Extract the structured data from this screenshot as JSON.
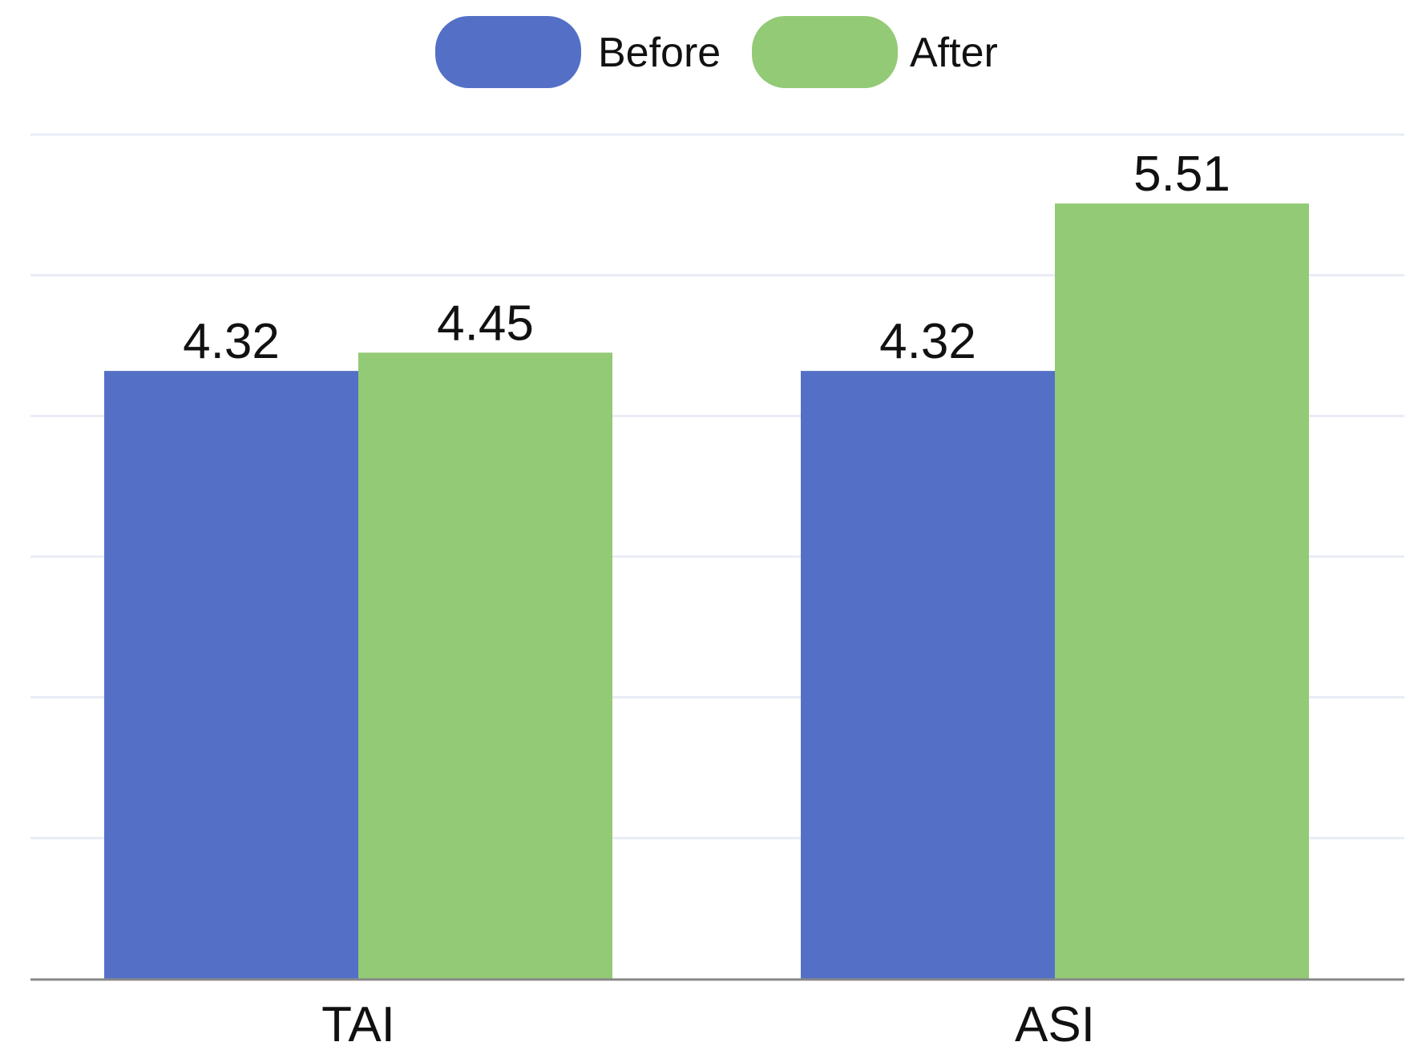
{
  "chart_data": {
    "type": "bar",
    "categories": [
      "TAI",
      "ASI"
    ],
    "series": [
      {
        "name": "Before",
        "values": [
          4.32,
          4.32
        ],
        "color": "#5470c6"
      },
      {
        "name": "After",
        "values": [
          4.45,
          5.51
        ],
        "color": "#93ca76"
      }
    ],
    "data_labels": [
      [
        "4.32",
        "4.32"
      ],
      [
        "4.45",
        "5.51"
      ]
    ],
    "title": "",
    "xlabel": "",
    "ylabel": "",
    "ylim": [
      0,
      6
    ],
    "y_tick_step": 1,
    "grid": true,
    "y_tick_labels_shown": false,
    "legend": {
      "position": "top-center",
      "shape": "rounded-rect"
    },
    "axis_color": "#888888",
    "grid_color": "#e8ecf5"
  }
}
